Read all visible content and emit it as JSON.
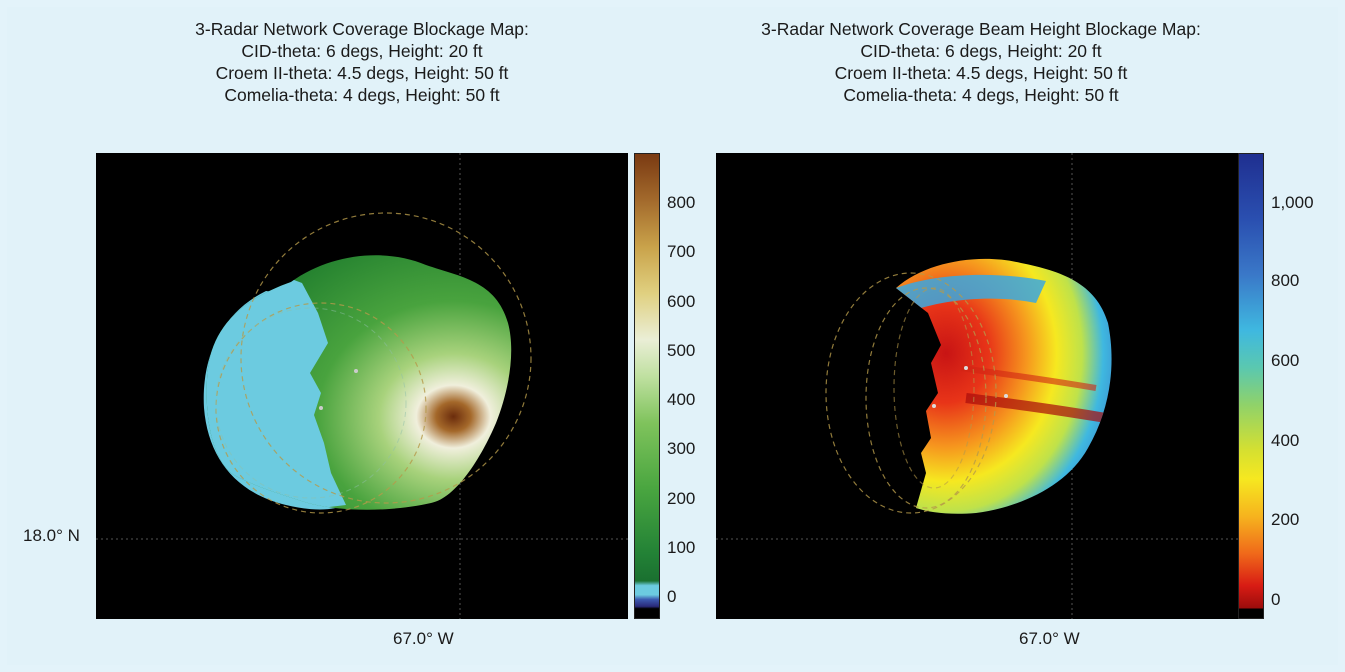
{
  "left_panel": {
    "title_lines": [
      "3-Radar Network Coverage Blockage Map:",
      "CID-theta: 6 degs, Height: 20 ft",
      "Croem II-theta: 4.5 degs, Height: 50 ft",
      "Comelia-theta: 4 degs, Height: 50 ft"
    ],
    "colorbar_ticks": [
      "800",
      "700",
      "600",
      "500",
      "400",
      "300",
      "200",
      "100",
      "0"
    ],
    "lat_label": "18.0° N",
    "lon_label": "67.0° W"
  },
  "right_panel": {
    "title_lines": [
      "3-Radar Network Coverage Beam Height Blockage Map:",
      "CID-theta: 6 degs, Height: 20 ft",
      "Croem II-theta: 4.5 degs, Height: 50 ft",
      "Comelia-theta: 4 degs, Height: 50 ft"
    ],
    "colorbar_ticks": [
      "1,000",
      "800",
      "600",
      "400",
      "200",
      "0"
    ],
    "lon_label": "67.0° W"
  },
  "colors": {
    "background": "#e1f2f9",
    "map_background": "#000000",
    "ocean_blockage": "#6ccbe0",
    "terrain_low": "#1e7d2e",
    "terrain_mid": "#7cc25a",
    "terrain_high": "#f2f2e2",
    "terrain_peak": "#7a3a12",
    "beam_low": "#d01818",
    "beam_mid": "#f6e820",
    "beam_high": "#2a4fb0"
  }
}
